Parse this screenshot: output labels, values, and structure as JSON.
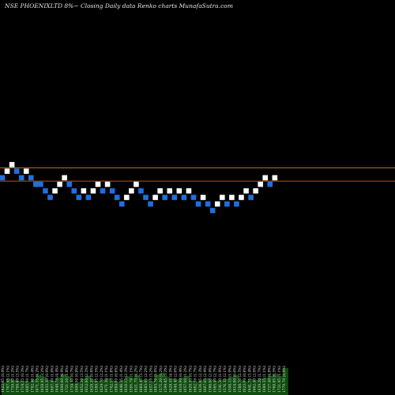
{
  "chart_data": {
    "type": "renko",
    "title": "NSE PHOENIXLTD 8%~  Closing Daily data  Renko  charts MunafaSutra.com",
    "colors": {
      "background": "#000000",
      "up_brick": "#ffffff",
      "down_brick": "#1f6fe0",
      "level_line": "#c8641e",
      "volume": "#0e4d0e"
    },
    "levels": [
      1797,
      1752
    ],
    "bricks": [
      {
        "price": 1752,
        "dir": "down"
      },
      {
        "price": 1797,
        "dir": "up"
      },
      {
        "price": 1842,
        "dir": "up"
      },
      {
        "price": 1797,
        "dir": "down"
      },
      {
        "price": 1752,
        "dir": "down"
      },
      {
        "price": 1797,
        "dir": "up"
      },
      {
        "price": 1752,
        "dir": "down"
      },
      {
        "price": 1707,
        "dir": "down"
      },
      {
        "price": 1707,
        "dir": "down"
      },
      {
        "price": 1662,
        "dir": "down"
      },
      {
        "price": 1617,
        "dir": "down"
      },
      {
        "price": 1662,
        "dir": "up"
      },
      {
        "price": 1707,
        "dir": "up"
      },
      {
        "price": 1752,
        "dir": "up"
      },
      {
        "price": 1707,
        "dir": "down"
      },
      {
        "price": 1662,
        "dir": "down"
      },
      {
        "price": 1617,
        "dir": "down"
      },
      {
        "price": 1662,
        "dir": "up"
      },
      {
        "price": 1617,
        "dir": "down"
      },
      {
        "price": 1662,
        "dir": "up"
      },
      {
        "price": 1707,
        "dir": "up"
      },
      {
        "price": 1662,
        "dir": "down"
      },
      {
        "price": 1707,
        "dir": "up"
      },
      {
        "price": 1662,
        "dir": "down"
      },
      {
        "price": 1617,
        "dir": "down"
      },
      {
        "price": 1572,
        "dir": "down"
      },
      {
        "price": 1617,
        "dir": "up"
      },
      {
        "price": 1662,
        "dir": "up"
      },
      {
        "price": 1707,
        "dir": "up"
      },
      {
        "price": 1662,
        "dir": "down"
      },
      {
        "price": 1617,
        "dir": "down"
      },
      {
        "price": 1572,
        "dir": "down"
      },
      {
        "price": 1617,
        "dir": "up"
      },
      {
        "price": 1662,
        "dir": "up"
      },
      {
        "price": 1617,
        "dir": "down"
      },
      {
        "price": 1662,
        "dir": "up"
      },
      {
        "price": 1617,
        "dir": "down"
      },
      {
        "price": 1662,
        "dir": "up"
      },
      {
        "price": 1617,
        "dir": "down"
      },
      {
        "price": 1662,
        "dir": "up"
      },
      {
        "price": 1617,
        "dir": "down"
      },
      {
        "price": 1572,
        "dir": "down"
      },
      {
        "price": 1617,
        "dir": "up"
      },
      {
        "price": 1572,
        "dir": "down"
      },
      {
        "price": 1527,
        "dir": "down"
      },
      {
        "price": 1572,
        "dir": "up"
      },
      {
        "price": 1617,
        "dir": "up"
      },
      {
        "price": 1572,
        "dir": "down"
      },
      {
        "price": 1617,
        "dir": "up"
      },
      {
        "price": 1572,
        "dir": "down"
      },
      {
        "price": 1617,
        "dir": "up"
      },
      {
        "price": 1662,
        "dir": "up"
      },
      {
        "price": 1617,
        "dir": "down"
      },
      {
        "price": 1662,
        "dir": "up"
      },
      {
        "price": 1707,
        "dir": "up"
      },
      {
        "price": 1752,
        "dir": "up"
      },
      {
        "price": 1707,
        "dir": "down"
      },
      {
        "price": 1752,
        "dir": "up"
      }
    ],
    "volume_labels": [
      "1822.85 (8.0%)",
      "1767.05 (2.1%)",
      "1750.85 (1.2%)",
      "1780.60 (3.5%)",
      "1714.35 (0.3%)",
      "1685.90 (1.7%)",
      "1702.40 (1.4%)",
      "1671.55 (4.2%)",
      "1658.95 (2.2%)",
      "1633.30 (0.9%)",
      "1607.40 (1.0%)",
      "1648.75 (4.4%)",
      "1690.60 (6.9%)",
      "1721.10 (1.8%)",
      "1734.40 (0.7%)",
      "1690.50 (0.8%)",
      "1652.30 (3.5%)",
      "1612.60 (2.3%)",
      "1628.20 (0.8%)",
      "1589.95 (2.5%)",
      "1624.70 (2.2%)",
      "1671.30 (1.1%)",
      "1702.10 (1.8%)",
      "1684.60 (0.6%)",
      "1646.55 (1.4%)",
      "1616.15 (2.3%)",
      "1595.70 (1.1%)",
      "1621.75 (4.2%)",
      "1660.45 (3.7%)",
      "1683.05 (2.2%)",
      "1637.10 (3.2%)",
      "1603.70 (5.0%)",
      "1575.20 (1.2%)",
      "1599.85 (5.3%)",
      "1628.55 (4.3%)",
      "1644.40 (2.6%)",
      "1618.90 (0.4%)",
      "1657.60 (1.2%)",
      "1620.30 (0.7%)",
      "1662.50 (1.7%)",
      "1636.85 (2.3%)",
      "1607.05 (2.4%)",
      "1586.60 (2.0%)",
      "1565.40 (2.7%)",
      "1541.30 (1.0%)",
      "1576.35 (2.1%)",
      "1598.15 (1.9%)",
      "1614.80 (0.6%)",
      "1588.70 (2.5%)",
      "1623.90 (0.6%)",
      "1641.75 (3.4%)",
      "1662.40 (2.0%)",
      "1639.20 (1.7%)",
      "1689.35 (1.1%)",
      "1727.40 (4.8%)",
      "1768.85 (0.5%)",
      "1721.95 (1.1%)",
      "1779.70 (8.0%)"
    ],
    "volume": [
      0.42,
      0.55,
      0.5,
      0.48,
      0.46,
      0.44,
      0.52,
      0.66,
      0.6,
      0.5,
      0.47,
      0.58,
      0.7,
      0.62,
      0.4,
      0.42,
      0.55,
      0.64,
      0.52,
      0.46,
      0.5,
      0.56,
      0.48,
      0.44,
      0.5,
      0.62,
      0.58,
      0.66,
      0.5,
      0.52,
      0.46,
      0.68,
      0.74,
      0.6,
      0.55,
      0.52,
      0.58,
      0.63,
      0.48,
      0.44,
      0.5,
      0.56,
      0.52,
      0.48,
      0.5,
      0.54,
      0.6,
      0.66,
      0.5,
      0.46,
      0.52,
      0.5,
      0.56,
      0.58,
      0.64,
      0.7,
      0.62,
      0.9
    ]
  }
}
